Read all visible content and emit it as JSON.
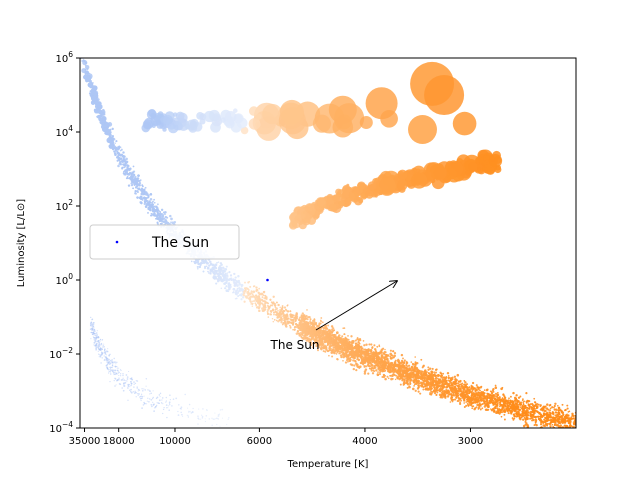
{
  "chart_data": {
    "type": "scatter",
    "title": "",
    "xlabel": "Temperature [K]",
    "ylabel": "Luminosity [L/L⊙]",
    "x_scale": "reciprocal",
    "y_scale": "log",
    "xlim": [
      40000,
      2400
    ],
    "ylim": [
      0.0001,
      1000000
    ],
    "x_ticks": [
      {
        "value": 35000,
        "label": "35000"
      },
      {
        "value": 18000,
        "label": "18000"
      },
      {
        "value": 10000,
        "label": "10000"
      },
      {
        "value": 6000,
        "label": "6000"
      },
      {
        "value": 4000,
        "label": "4000"
      },
      {
        "value": 3000,
        "label": "3000"
      }
    ],
    "y_ticks": [
      {
        "value": 0.0001,
        "base": "10",
        "exp": "−4"
      },
      {
        "value": 0.01,
        "base": "10",
        "exp": "−2"
      },
      {
        "value": 1,
        "base": "10",
        "exp": "0"
      },
      {
        "value": 100,
        "base": "10",
        "exp": "2"
      },
      {
        "value": 10000,
        "base": "10",
        "exp": "4"
      },
      {
        "value": 1000000,
        "base": "10",
        "exp": "6"
      }
    ],
    "grid": false,
    "legend_position": "center-left",
    "series": [
      {
        "name": "The Sun",
        "color": "#0000ff",
        "points": [
          {
            "temperature": 5778,
            "luminosity": 1
          }
        ]
      }
    ],
    "star_populations": [
      {
        "group": "main-sequence",
        "t_range": [
          40000,
          2400
        ],
        "l_range": [
          1000000,
          0.0001
        ]
      },
      {
        "group": "white-dwarfs",
        "t_range": [
          30000,
          7000
        ],
        "l_range": [
          0.1,
          0.0001
        ]
      },
      {
        "group": "giants",
        "t_range": [
          5200,
          3000
        ],
        "l_range": [
          30,
          3000
        ]
      },
      {
        "group": "supergiants",
        "t_range": [
          12000,
          3000
        ],
        "l_range": [
          5000,
          300000
        ]
      }
    ],
    "color_scale": {
      "hot": "#aec7f5",
      "mid": "#ffffff",
      "cool": "#ff8c1a"
    },
    "annotation": {
      "text": "The Sun",
      "target": {
        "temperature": 5778,
        "luminosity": 1
      }
    }
  }
}
